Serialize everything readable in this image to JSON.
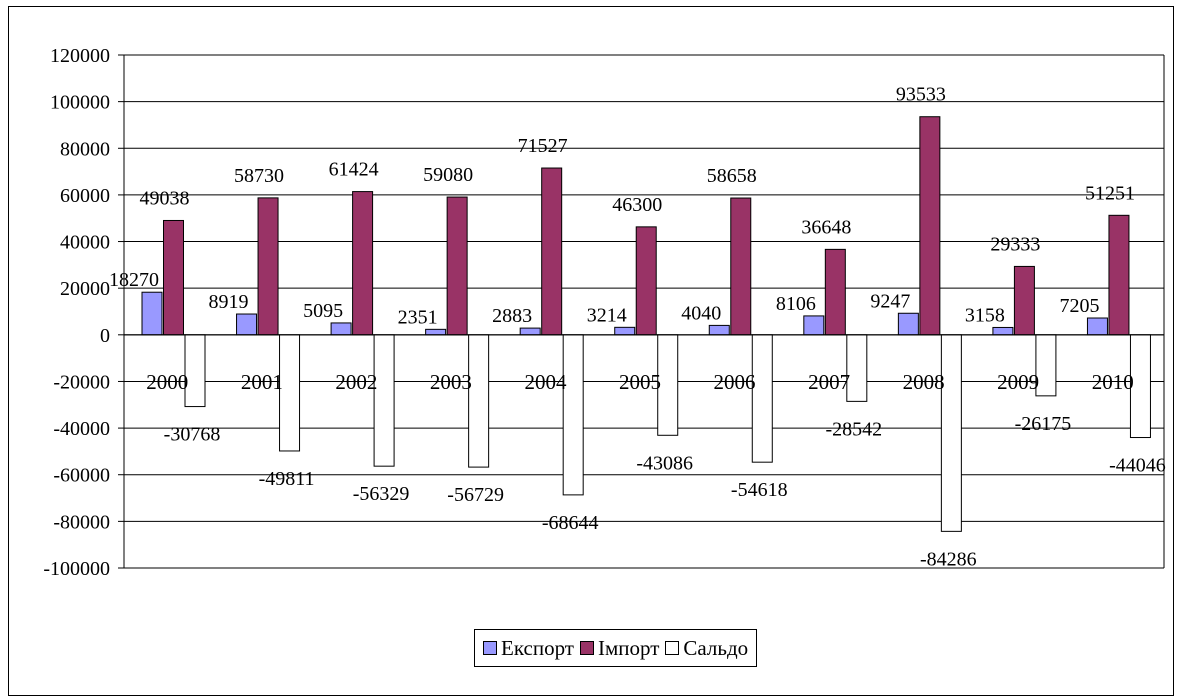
{
  "chart_data": {
    "type": "bar",
    "title": "",
    "xlabel": "",
    "ylabel": "",
    "categories": [
      "2000",
      "2001",
      "2002",
      "2003",
      "2004",
      "2005",
      "2006",
      "2007",
      "2008",
      "2009",
      "2010"
    ],
    "series": [
      {
        "name": "Експорт",
        "color": "#9999FF",
        "values": [
          18270,
          8919,
          5095,
          2351,
          2883,
          3214,
          4040,
          8106,
          9247,
          3158,
          7205
        ]
      },
      {
        "name": "Імпорт",
        "color": "#993366",
        "values": [
          49038,
          58730,
          61424,
          59080,
          71527,
          46300,
          58658,
          36648,
          93533,
          29333,
          51251
        ]
      },
      {
        "name": "Сальдо",
        "color": "#FFFFFF",
        "values": [
          -30768,
          -49811,
          -56329,
          -56729,
          -68644,
          -43086,
          -54618,
          -28542,
          -84286,
          -26175,
          -44046
        ]
      }
    ],
    "ylim": [
      -100000,
      120000
    ],
    "yticks": [
      "120000",
      "100000",
      "80000",
      "60000",
      "40000",
      "20000",
      "0",
      "-20000",
      "-40000",
      "-60000",
      "-80000",
      "-100000"
    ],
    "grid": true,
    "legend": "bottom"
  }
}
